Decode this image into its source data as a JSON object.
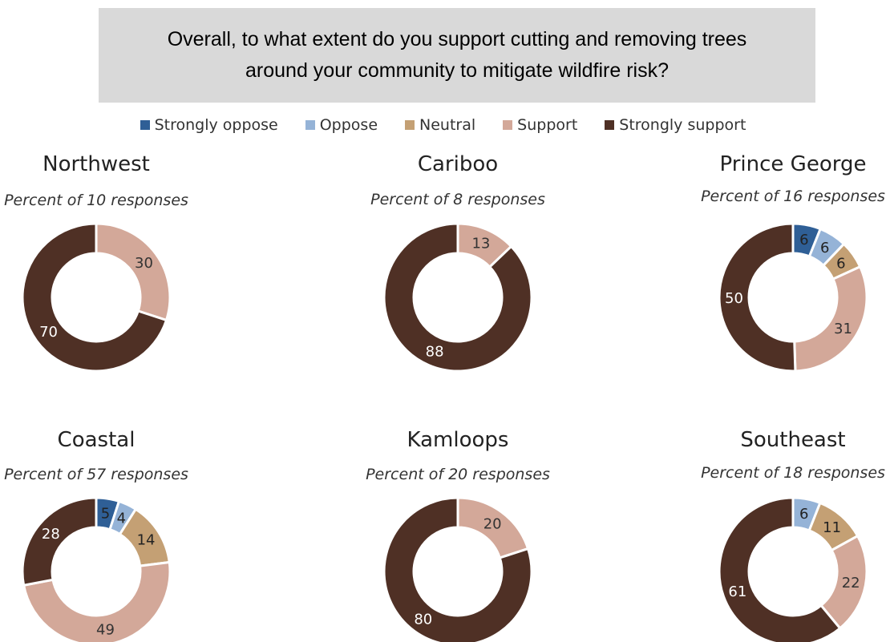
{
  "title": {
    "line1": "Overall, to what extent do you support cutting and removing trees",
    "line2": "around your community to mitigate wildfire risk?"
  },
  "legend": [
    {
      "label": "Strongly oppose",
      "color": "#2f5f96"
    },
    {
      "label": "Oppose",
      "color": "#95b3d7"
    },
    {
      "label": "Neutral",
      "color": "#c4a074"
    },
    {
      "label": "Support",
      "color": "#d3a899"
    },
    {
      "label": "Strongly support",
      "color": "#4f3025"
    }
  ],
  "chart_data": [
    {
      "type": "pie",
      "title": "Northwest",
      "subtitle": "Percent of 10 responses",
      "categories": [
        "Strongly oppose",
        "Oppose",
        "Neutral",
        "Support",
        "Strongly support"
      ],
      "values": [
        0,
        0,
        0,
        30,
        70
      ]
    },
    {
      "type": "pie",
      "title": "Cariboo",
      "subtitle": "Percent of 8 responses",
      "categories": [
        "Strongly oppose",
        "Oppose",
        "Neutral",
        "Support",
        "Strongly support"
      ],
      "values": [
        0,
        0,
        0,
        13,
        88
      ]
    },
    {
      "type": "pie",
      "title": "Prince George",
      "subtitle": "Percent of 16 responses",
      "categories": [
        "Strongly oppose",
        "Oppose",
        "Neutral",
        "Support",
        "Strongly support"
      ],
      "values": [
        6,
        6,
        6,
        31,
        50
      ]
    },
    {
      "type": "pie",
      "title": "Coastal",
      "subtitle": "Percent of 57 responses",
      "categories": [
        "Strongly oppose",
        "Oppose",
        "Neutral",
        "Support",
        "Strongly support"
      ],
      "values": [
        5,
        4,
        14,
        49,
        28
      ]
    },
    {
      "type": "pie",
      "title": "Kamloops",
      "subtitle": "Percent of 20 responses",
      "categories": [
        "Strongly oppose",
        "Oppose",
        "Neutral",
        "Support",
        "Strongly support"
      ],
      "values": [
        0,
        0,
        0,
        20,
        80
      ]
    },
    {
      "type": "pie",
      "title": "Southeast",
      "subtitle": "Percent of 18 responses",
      "categories": [
        "Strongly oppose",
        "Oppose",
        "Neutral",
        "Support",
        "Strongly support"
      ],
      "values": [
        0,
        6,
        11,
        22,
        61
      ]
    }
  ]
}
